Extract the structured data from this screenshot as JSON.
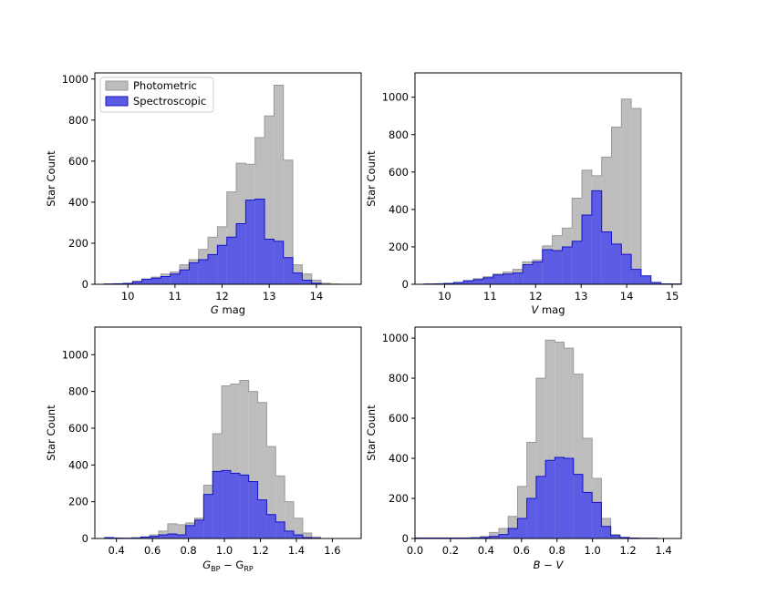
{
  "chart_data": [
    {
      "type": "histogram",
      "xlabel": "G mag",
      "ylabel": "Star Count",
      "xlim": [
        9.3,
        14.95
      ],
      "ylim": [
        0,
        1030
      ],
      "xticks": [
        "10",
        "11",
        "12",
        "13",
        "14"
      ],
      "xtick_values": [
        10,
        11,
        12,
        13,
        14
      ],
      "yticks": [
        "0",
        "200",
        "400",
        "600",
        "800",
        "1000"
      ],
      "ytick_values": [
        0,
        200,
        400,
        600,
        800,
        1000
      ],
      "bin_start": 9.5,
      "bin_width": 0.2,
      "legend": [
        "Photometric",
        "Spectroscopic"
      ],
      "legend_position": "upper-left",
      "series": [
        {
          "name": "Photometric",
          "color": "#bdbdbd",
          "edge": "#999999",
          "values": [
            2,
            3,
            5,
            15,
            25,
            35,
            50,
            60,
            95,
            120,
            170,
            230,
            280,
            450,
            590,
            585,
            715,
            820,
            970,
            605,
            95,
            50,
            20,
            5,
            1
          ]
        },
        {
          "name": "Spectroscopic",
          "color": "#5b5be3",
          "edge": "#1414c8",
          "values": [
            1,
            2,
            4,
            12,
            25,
            30,
            38,
            50,
            70,
            105,
            120,
            145,
            190,
            230,
            295,
            410,
            415,
            220,
            210,
            130,
            55,
            20,
            5,
            0,
            0
          ]
        }
      ]
    },
    {
      "type": "histogram",
      "xlabel": "V mag",
      "ylabel": "Star Count",
      "xlim": [
        9.35,
        15.2
      ],
      "ylim": [
        0,
        1130
      ],
      "xticks": [
        "10",
        "11",
        "12",
        "13",
        "14",
        "15"
      ],
      "xtick_values": [
        10,
        11,
        12,
        13,
        14,
        15
      ],
      "yticks": [
        "0",
        "200",
        "400",
        "600",
        "800",
        "1000"
      ],
      "ytick_values": [
        0,
        200,
        400,
        600,
        800,
        1000
      ],
      "bin_start": 9.55,
      "bin_width": 0.2167,
      "series": [
        {
          "name": "Photometric",
          "color": "#bdbdbd",
          "edge": "#999999",
          "values": [
            2,
            3,
            5,
            10,
            20,
            30,
            40,
            55,
            65,
            80,
            120,
            130,
            205,
            260,
            300,
            460,
            610,
            580,
            680,
            840,
            990,
            940,
            10,
            5,
            2,
            2
          ]
        },
        {
          "name": "Spectroscopic",
          "color": "#5b5be3",
          "edge": "#1414c8",
          "values": [
            1,
            2,
            4,
            10,
            18,
            25,
            35,
            50,
            55,
            60,
            105,
            120,
            185,
            180,
            200,
            230,
            370,
            500,
            280,
            215,
            160,
            80,
            45,
            10,
            2,
            1
          ]
        }
      ]
    },
    {
      "type": "histogram",
      "xlabel": "G_BP − G_RP",
      "xlabel_main": "G",
      "xlabel_sub1": "BP",
      "xlabel_mid": " − G",
      "xlabel_sub2": "RP",
      "ylabel": "Star Count",
      "xlim": [
        0.28,
        1.76
      ],
      "ylim": [
        0,
        1150
      ],
      "xticks": [
        "0.4",
        "0.6",
        "0.8",
        "1.0",
        "1.2",
        "1.4",
        "1.6"
      ],
      "xtick_values": [
        0.4,
        0.6,
        0.8,
        1.0,
        1.2,
        1.4,
        1.6
      ],
      "yticks": [
        "0",
        "200",
        "400",
        "600",
        "800",
        "1000"
      ],
      "ytick_values": [
        0,
        200,
        400,
        600,
        800,
        1000
      ],
      "bin_start": 0.335,
      "bin_width": 0.05,
      "series": [
        {
          "name": "Photometric",
          "color": "#bdbdbd",
          "edge": "#999999",
          "values": [
            2,
            3,
            2,
            5,
            8,
            20,
            40,
            80,
            75,
            85,
            110,
            290,
            570,
            830,
            840,
            860,
            800,
            740,
            500,
            340,
            200,
            110,
            30,
            8
          ]
        },
        {
          "name": "Spectroscopic",
          "color": "#5b5be3",
          "edge": "#1414c8",
          "values": [
            5,
            2,
            1,
            2,
            8,
            12,
            20,
            25,
            20,
            70,
            100,
            240,
            365,
            370,
            355,
            345,
            310,
            210,
            130,
            90,
            40,
            20,
            5,
            2
          ]
        }
      ]
    },
    {
      "type": "histogram",
      "xlabel": "B − V",
      "ylabel": "Star Count",
      "xlim": [
        0.0,
        1.5
      ],
      "ylim": [
        0,
        1055
      ],
      "xticks": [
        "0.0",
        "0.2",
        "0.4",
        "0.6",
        "0.8",
        "1.0",
        "1.2",
        "1.4"
      ],
      "xtick_values": [
        0.0,
        0.2,
        0.4,
        0.6,
        0.8,
        1.0,
        1.2,
        1.4
      ],
      "yticks": [
        "0",
        "200",
        "400",
        "600",
        "800",
        "1000"
      ],
      "ytick_values": [
        0,
        200,
        400,
        600,
        800,
        1000
      ],
      "bin_start": 0.0,
      "bin_width": 0.0525,
      "series": [
        {
          "name": "Photometric",
          "color": "#bdbdbd",
          "edge": "#999999",
          "values": [
            3,
            3,
            3,
            3,
            3,
            3,
            5,
            10,
            30,
            50,
            110,
            260,
            480,
            800,
            990,
            980,
            950,
            820,
            500,
            300,
            100,
            20,
            5,
            2,
            1,
            1
          ]
        },
        {
          "name": "Spectroscopic",
          "color": "#5b5be3",
          "edge": "#1414c8",
          "values": [
            2,
            2,
            2,
            2,
            2,
            2,
            3,
            5,
            10,
            20,
            50,
            100,
            200,
            310,
            390,
            405,
            400,
            320,
            230,
            180,
            60,
            15,
            5,
            2,
            1,
            1
          ]
        }
      ]
    }
  ]
}
